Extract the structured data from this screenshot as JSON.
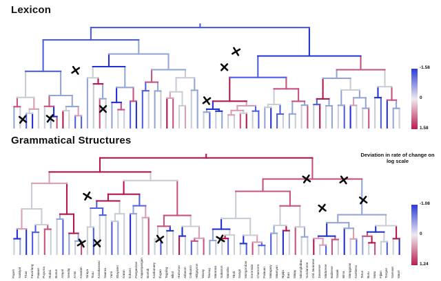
{
  "page": {
    "background": "#ffffff"
  },
  "chart_data": {
    "type": "dendrogram",
    "description": "Two colored phylogenetic dendrograms of the same language set; branch color encodes deviation in rate of change, black X marks flag branches",
    "caption": "Deviation in rate of change on log scale",
    "palette": [
      "#2330d4",
      "#4f5fe2",
      "#94a6d8",
      "#c8cdd6",
      "#d79fb4",
      "#c75181",
      "#b3174e"
    ],
    "shared_leaf_labels": [
      "Pazeh",
      "Saisiyat",
      "Thao",
      "Favorlang",
      "Paiwan",
      "Puyuma",
      "Rukai",
      "Bunun",
      "Atayal",
      "Seediq",
      "Amis",
      "Kavalan",
      "Siraya",
      "Tsou",
      "Kanakanavu",
      "Saaroa",
      "Yami",
      "Itbayaten",
      "Ivatan",
      "Ilokano",
      "Pangasinan",
      "Kapampangan",
      "Bontok",
      "Kankanaey",
      "Ifugao",
      "Tagalog",
      "Bikol",
      "Hanunoo",
      "Aklanon",
      "Cebuano",
      "Hiligaynon",
      "Waray",
      "Tausug",
      "Maranao",
      "Subanon",
      "Manobo",
      "Tboli",
      "Sangir",
      "Mongondow",
      "Gorontalo",
      "Chamorro",
      "Palauan",
      "Malagasy",
      "Maanyan",
      "Ngaju",
      "Iban",
      "Malay",
      "Minangkabau",
      "Sundanese",
      "Old Javanese",
      "Javanese",
      "Madurese",
      "Balinese",
      "Sasak",
      "Bima",
      "Manggarai",
      "Kambera",
      "Tetun",
      "Buru",
      "Motu",
      "Fijian",
      "Tongan",
      "Samoan",
      "Maori"
    ],
    "panels": [
      {
        "title": "Lexicon",
        "seed": 1203,
        "root_height": 0.04,
        "leaf_color_idx": [
          2,
          3,
          1,
          0,
          3,
          3,
          2,
          5,
          6,
          3,
          1,
          1,
          2,
          3,
          5,
          3,
          2,
          3,
          3,
          1,
          0,
          1,
          3,
          2,
          3,
          6,
          5,
          3,
          4,
          3,
          2,
          3,
          1,
          3,
          2,
          3,
          3,
          5,
          6,
          3,
          1,
          2,
          0,
          1,
          3,
          2,
          3,
          3,
          5,
          3,
          6,
          3,
          2,
          3,
          1,
          0,
          3,
          3,
          5,
          3,
          1,
          0,
          2,
          3
        ],
        "x_marks": [
          [
            0.575,
            0.27
          ],
          [
            0.545,
            0.42
          ],
          [
            0.165,
            0.45
          ],
          [
            0.5,
            0.74
          ],
          [
            0.235,
            0.82
          ],
          [
            0.03,
            0.92
          ],
          [
            0.1,
            0.91
          ]
        ],
        "colorbar": {
          "ticks": [
            "-1.58",
            "0",
            "1.58"
          ],
          "top_color": "#2d3bd6",
          "mid_color": "#edeaf0",
          "bottom_color": "#bb1c4f"
        }
      },
      {
        "title": "Grammatical Structures",
        "seed": 7785,
        "root_height": 0.04,
        "leaf_color_idx": [
          3,
          2,
          0,
          1,
          3,
          5,
          3,
          3,
          1,
          2,
          3,
          5,
          3,
          1,
          3,
          3,
          1,
          2,
          3,
          0,
          3,
          3,
          5,
          3,
          1,
          3,
          3,
          6,
          3,
          1,
          3,
          5,
          2,
          3,
          3,
          1,
          3,
          3,
          1,
          5,
          3,
          2,
          1,
          3,
          0,
          3,
          5,
          3,
          3,
          6,
          3,
          1,
          5,
          3,
          0,
          3,
          1,
          2,
          3,
          5,
          3,
          1,
          3,
          0
        ],
        "x_marks": [
          [
            0.755,
            0.25
          ],
          [
            0.85,
            0.26
          ],
          [
            0.195,
            0.42
          ],
          [
            0.9,
            0.46
          ],
          [
            0.795,
            0.54
          ],
          [
            0.38,
            0.85
          ],
          [
            0.535,
            0.85
          ],
          [
            0.18,
            0.89
          ],
          [
            0.22,
            0.89
          ]
        ],
        "colorbar": {
          "ticks": [
            "-1.08",
            "0",
            "1.24"
          ],
          "top_color": "#2d3bd6",
          "mid_color": "#edeaf0",
          "bottom_color": "#bb1c4f"
        }
      }
    ]
  }
}
